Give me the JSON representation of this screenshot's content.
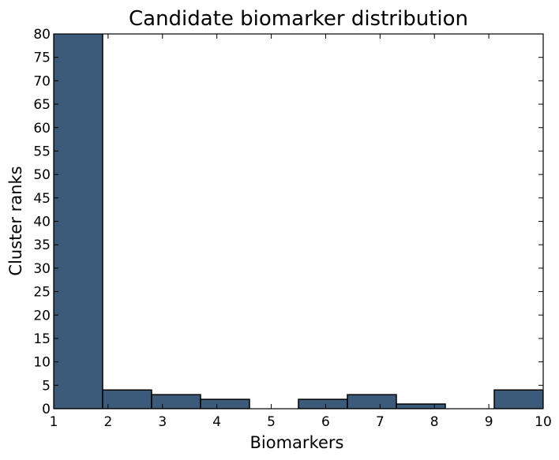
{
  "chart_data": {
    "type": "bar",
    "title": "Candidate biomarker distribution",
    "xlabel": "Biomarkers",
    "ylabel": "Cluster ranks",
    "xlim": [
      1,
      10
    ],
    "ylim": [
      0,
      80
    ],
    "xticks": [
      1,
      2,
      3,
      4,
      5,
      6,
      7,
      8,
      9,
      10
    ],
    "yticks": [
      0,
      5,
      10,
      15,
      20,
      25,
      30,
      35,
      40,
      45,
      50,
      55,
      60,
      65,
      70,
      75,
      80
    ],
    "bin_edges": [
      1,
      1.9,
      2.8,
      3.7,
      4.6,
      5.5,
      6.4,
      7.3,
      8.2,
      9.1,
      10
    ],
    "values": [
      81,
      4,
      3,
      2,
      0,
      2,
      3,
      1,
      0,
      4
    ],
    "grid": false,
    "colors": {
      "bar_fill": "#3c5a7a",
      "bar_edge": "#000000"
    }
  }
}
